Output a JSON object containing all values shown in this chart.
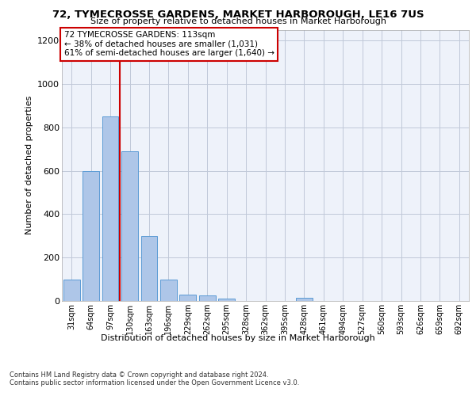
{
  "title1": "72, TYMECROSSE GARDENS, MARKET HARBOROUGH, LE16 7US",
  "title2": "Size of property relative to detached houses in Market Harborough",
  "xlabel": "Distribution of detached houses by size in Market Harborough",
  "ylabel": "Number of detached properties",
  "categories": [
    "31sqm",
    "64sqm",
    "97sqm",
    "130sqm",
    "163sqm",
    "196sqm",
    "229sqm",
    "262sqm",
    "295sqm",
    "328sqm",
    "362sqm",
    "395sqm",
    "428sqm",
    "461sqm",
    "494sqm",
    "527sqm",
    "560sqm",
    "593sqm",
    "626sqm",
    "659sqm",
    "692sqm"
  ],
  "values": [
    100,
    600,
    850,
    690,
    300,
    100,
    30,
    25,
    10,
    0,
    0,
    0,
    15,
    0,
    0,
    0,
    0,
    0,
    0,
    0,
    0
  ],
  "bar_color": "#aec6e8",
  "bar_edge_color": "#5b9bd5",
  "pct_smaller": "38%",
  "n_smaller": "1,031",
  "pct_larger": "61%",
  "n_larger": "1,640",
  "annotation_box_color": "#cc0000",
  "vline_color": "#cc0000",
  "ylim": [
    0,
    1250
  ],
  "yticks": [
    0,
    200,
    400,
    600,
    800,
    1000,
    1200
  ],
  "footer1": "Contains HM Land Registry data © Crown copyright and database right 2024.",
  "footer2": "Contains public sector information licensed under the Open Government Licence v3.0.",
  "bg_color": "#eef2fa",
  "grid_color": "#c0c8d8"
}
